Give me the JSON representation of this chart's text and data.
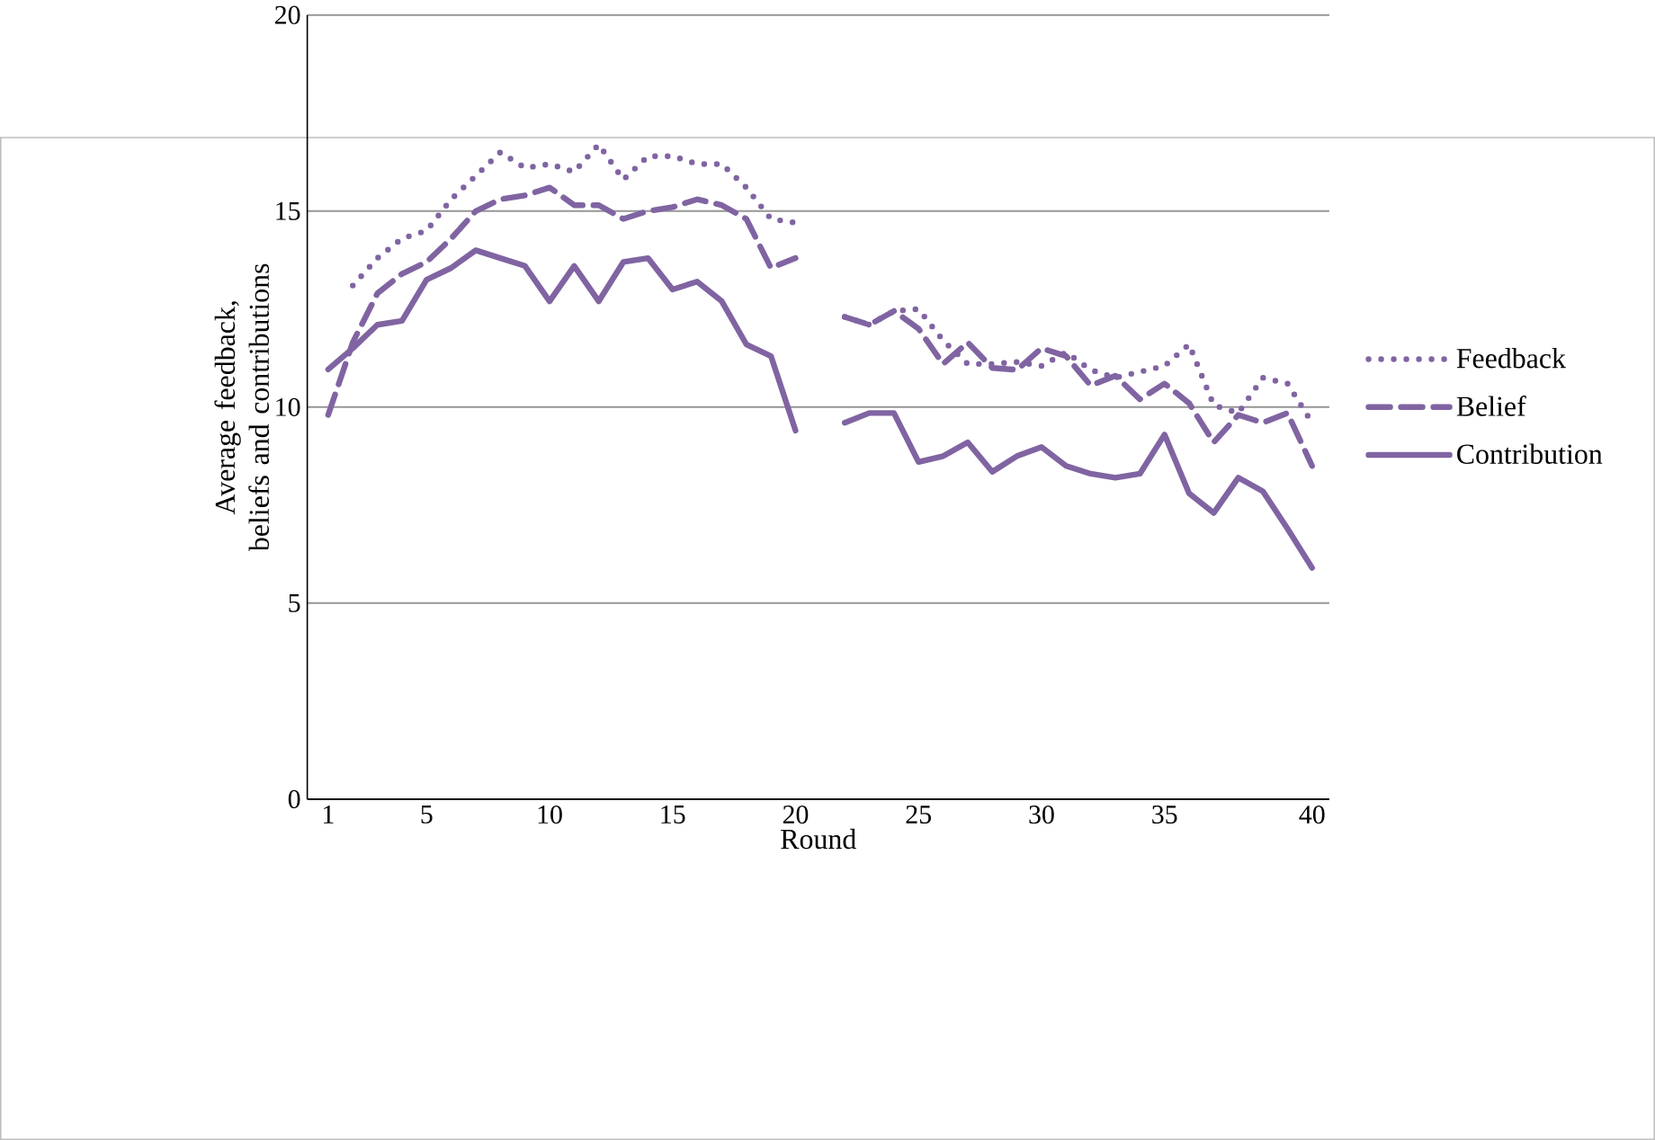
{
  "chart_data": {
    "type": "line",
    "xlabel": "Round",
    "ylabel": "Average  feedback, beliefs and contributions",
    "categories": [
      "1",
      null,
      null,
      null,
      "5",
      null,
      null,
      null,
      null,
      "10",
      null,
      null,
      null,
      null,
      "15",
      null,
      null,
      null,
      null,
      "20",
      null,
      null,
      null,
      null,
      "25",
      null,
      null,
      null,
      null,
      "30",
      null,
      null,
      null,
      null,
      "35",
      null,
      null,
      null,
      null,
      null,
      "40"
    ],
    "ylim": [
      0,
      20
    ],
    "yticks": [
      0,
      5,
      10,
      15,
      20
    ],
    "grid": "y",
    "legend": "right",
    "marker": "none",
    "series": [
      {
        "name": "Feedback",
        "color": "#8064a2",
        "line_style": "dotted",
        "values": [
          null,
          13.1,
          13.8,
          14.3,
          14.5,
          15.3,
          15.9,
          16.5,
          16.1,
          16.2,
          16.0,
          16.7,
          15.8,
          16.4,
          16.4,
          16.2,
          16.2,
          15.6,
          14.8,
          14.7,
          null,
          12.3,
          12.1,
          12.45,
          12.5,
          11.7,
          11.1,
          11.1,
          11.15,
          11.05,
          11.4,
          10.95,
          10.75,
          10.9,
          11.05,
          11.6,
          10.05,
          9.85,
          10.75,
          10.6,
          9.6
        ]
      },
      {
        "name": "Belief",
        "color": "#8064a2",
        "line_style": "dashed",
        "values": [
          9.8,
          11.65,
          12.9,
          13.4,
          13.7,
          14.3,
          15.0,
          15.3,
          15.4,
          15.6,
          15.15,
          15.15,
          14.8,
          15.0,
          15.1,
          15.3,
          15.15,
          14.8,
          13.55,
          13.8,
          null,
          12.3,
          12.1,
          12.45,
          12.0,
          11.1,
          11.65,
          11.0,
          10.95,
          11.5,
          11.3,
          10.55,
          10.8,
          10.2,
          10.6,
          10.1,
          9.1,
          9.8,
          9.6,
          9.85,
          8.5
        ]
      },
      {
        "name": "Contribution",
        "color": "#8064a2",
        "line_style": "solid",
        "values": [
          10.96,
          11.5,
          12.1,
          12.2,
          13.25,
          13.55,
          14.0,
          13.8,
          13.6,
          12.7,
          13.6,
          12.7,
          13.7,
          13.8,
          13.0,
          13.2,
          12.7,
          11.6,
          11.3,
          9.4,
          null,
          9.6,
          9.85,
          9.85,
          8.6,
          8.75,
          9.1,
          8.35,
          8.75,
          8.98,
          8.5,
          8.3,
          8.2,
          8.3,
          9.3,
          7.8,
          7.3,
          8.2,
          7.85,
          6.9,
          5.9
        ]
      }
    ]
  }
}
